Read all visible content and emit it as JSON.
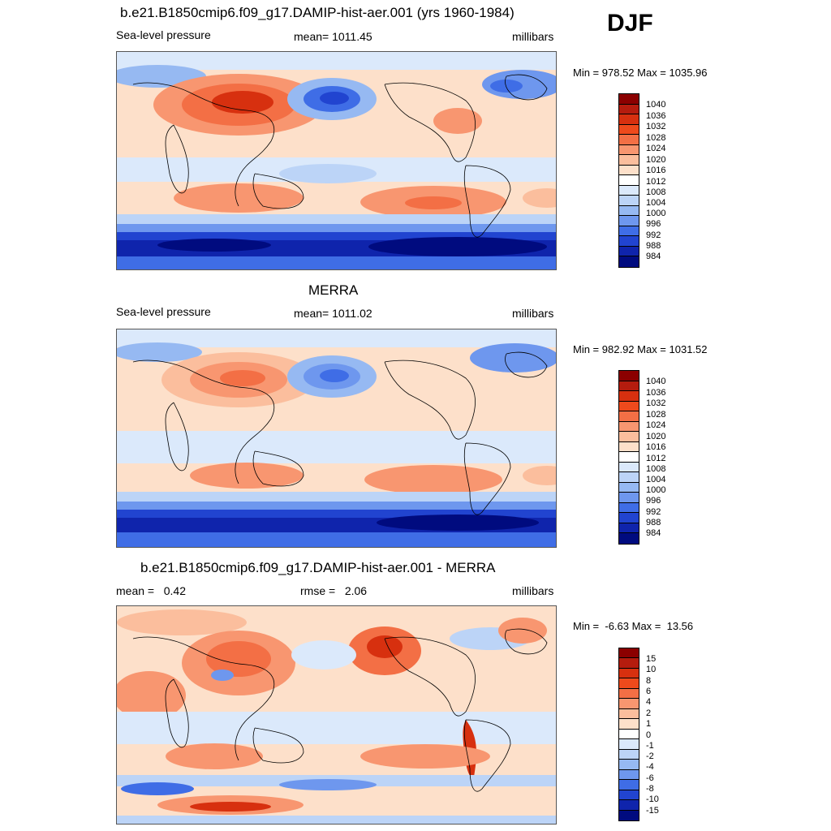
{
  "season": "DJF",
  "colors": {
    "pressure_scale": [
      "#8b0000",
      "#b51c0e",
      "#d7300f",
      "#ee4a1c",
      "#f36f45",
      "#f89670",
      "#fbbe9d",
      "#fde0ca",
      "#ffffff",
      "#dbe9fb",
      "#bcd4f7",
      "#96b9f2",
      "#6e97ee",
      "#3f6de6",
      "#2144d0",
      "#0f24ac",
      "#000b7f"
    ],
    "diff_scale": [
      "#8b0000",
      "#b51c0e",
      "#d7300f",
      "#ee4a1c",
      "#f36f45",
      "#f89670",
      "#fbbe9d",
      "#fde0ca",
      "#ffffff",
      "#dbe9fb",
      "#bcd4f7",
      "#96b9f2",
      "#6e97ee",
      "#3f6de6",
      "#2144d0",
      "#0f24ac",
      "#000b7f"
    ]
  },
  "panels": [
    {
      "title": "b.e21.B1850cmip6.f09_g17.DAMIP-hist-aer.001 (yrs 1960-1984)",
      "left": "Sea-level pressure",
      "center": "mean= 1011.45",
      "right": "millibars",
      "minmax": "Min = 978.52 Max = 1035.96",
      "ticks": [
        "1040",
        "1036",
        "1032",
        "1028",
        "1024",
        "1020",
        "1016",
        "1012",
        "1008",
        "1004",
        "1000",
        "996",
        "992",
        "988",
        "984"
      ]
    },
    {
      "title": "MERRA",
      "left": "Sea-level pressure",
      "center": "mean= 1011.02",
      "right": "millibars",
      "minmax": "Min = 982.92 Max = 1031.52",
      "ticks": [
        "1040",
        "1036",
        "1032",
        "1028",
        "1024",
        "1020",
        "1016",
        "1012",
        "1008",
        "1004",
        "1000",
        "996",
        "992",
        "988",
        "984"
      ]
    },
    {
      "title": "b.e21.B1850cmip6.f09_g17.DAMIP-hist-aer.001 - MERRA",
      "left": "mean =   0.42",
      "center": "rmse =   2.06",
      "right": "millibars",
      "minmax": "Min =  -6.63 Max =  13.56",
      "ticks": [
        "15",
        "10",
        "8",
        "6",
        "4",
        "2",
        "1",
        "0",
        "-1",
        "-2",
        "-4",
        "-6",
        "-8",
        "-10",
        "-15"
      ]
    }
  ]
}
